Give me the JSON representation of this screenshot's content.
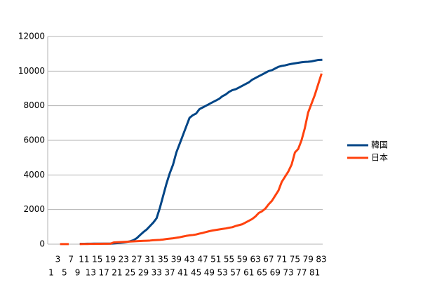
{
  "chart_data": {
    "type": "line",
    "categories": [
      1,
      null,
      3,
      null,
      5,
      null,
      7,
      null,
      9,
      null,
      11,
      null,
      13,
      null,
      15,
      null,
      17,
      null,
      19,
      null,
      21,
      null,
      23,
      null,
      25,
      null,
      27,
      null,
      29,
      null,
      31,
      null,
      33,
      null,
      35,
      null,
      37,
      null,
      39,
      null,
      41,
      null,
      43,
      null,
      45,
      null,
      47,
      null,
      49,
      null,
      51,
      null,
      53,
      null,
      55,
      null,
      57,
      null,
      59,
      null,
      61,
      null,
      63,
      null,
      65,
      null,
      67,
      null,
      69,
      null,
      71,
      null,
      73,
      null,
      75,
      null,
      77,
      null,
      79,
      null,
      81,
      null,
      83
    ],
    "series": [
      {
        "name": "韓国",
        "color": "#004586",
        "values": [
          null,
          null,
          null,
          null,
          null,
          null,
          null,
          null,
          null,
          20,
          22,
          24,
          26,
          28,
          28,
          28,
          28,
          29,
          30,
          40,
          60,
          80,
          100,
          130,
          170,
          230,
          350,
          530,
          700,
          850,
          1050,
          1250,
          1500,
          2100,
          2800,
          3500,
          4100,
          4600,
          5300,
          5800,
          6300,
          6800,
          7300,
          7450,
          7550,
          7800,
          7900,
          8000,
          8100,
          8200,
          8300,
          8400,
          8550,
          8650,
          8800,
          8900,
          8950,
          9050,
          9150,
          9250,
          9350,
          9500,
          9600,
          9700,
          9800,
          9900,
          10000,
          10050,
          10150,
          10250,
          10300,
          10330,
          10380,
          10420,
          10450,
          10480,
          10510,
          10530,
          10540,
          10560,
          10600,
          10640,
          10650
        ]
      },
      {
        "name": "日本",
        "color": "#ff420e",
        "values": [
          1,
          null,
          null,
          3,
          3,
          4,
          null,
          null,
          null,
          8,
          10,
          12,
          15,
          17,
          20,
          22,
          25,
          26,
          28,
          100,
          110,
          120,
          130,
          140,
          150,
          160,
          170,
          180,
          190,
          200,
          210,
          230,
          240,
          250,
          270,
          300,
          320,
          340,
          370,
          400,
          440,
          480,
          510,
          530,
          560,
          610,
          650,
          700,
          750,
          790,
          820,
          850,
          880,
          910,
          950,
          980,
          1050,
          1100,
          1150,
          1250,
          1350,
          1450,
          1600,
          1800,
          1900,
          2050,
          2300,
          2500,
          2800,
          3100,
          3600,
          3900,
          4200,
          4600,
          5300,
          5500,
          6000,
          6700,
          7600,
          8100,
          8600,
          9200,
          9800
        ]
      }
    ],
    "ylim": [
      0,
      12000
    ],
    "yticks": [
      0,
      2000,
      4000,
      6000,
      8000,
      10000,
      12000
    ],
    "grid": true
  }
}
